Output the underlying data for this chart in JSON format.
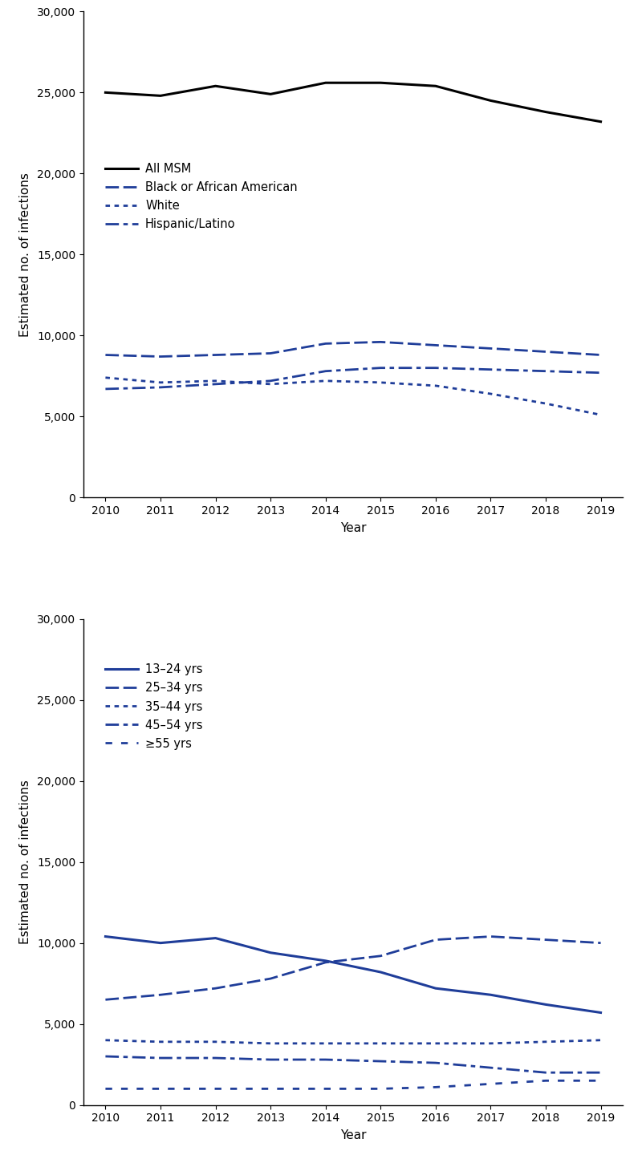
{
  "years": [
    2010,
    2011,
    2012,
    2013,
    2014,
    2015,
    2016,
    2017,
    2018,
    2019
  ],
  "panel1": {
    "all_msm": [
      25000,
      24800,
      25400,
      24900,
      25600,
      25600,
      25400,
      24500,
      23800,
      23200
    ],
    "black": [
      8800,
      8700,
      8800,
      8900,
      9500,
      9600,
      9400,
      9200,
      9000,
      8800
    ],
    "white": [
      7400,
      7100,
      7200,
      7000,
      7200,
      7100,
      6900,
      6400,
      5800,
      5100
    ],
    "hispanic": [
      6700,
      6800,
      7000,
      7200,
      7800,
      8000,
      8000,
      7900,
      7800,
      7700
    ],
    "ylabel": "Estimated no. of infections",
    "xlabel": "Year",
    "ylim": [
      0,
      30000
    ],
    "yticks": [
      0,
      5000,
      10000,
      15000,
      20000,
      25000,
      30000
    ],
    "legend_labels": [
      "All MSM",
      "Black or African American",
      "White",
      "Hispanic/Latino"
    ]
  },
  "panel2": {
    "age_13_24": [
      10400,
      10000,
      10300,
      9400,
      8900,
      8200,
      7200,
      6800,
      6200,
      5700
    ],
    "age_25_34": [
      6500,
      6800,
      7200,
      7800,
      8800,
      9200,
      10200,
      10400,
      10200,
      10000
    ],
    "age_35_44": [
      4000,
      3900,
      3900,
      3800,
      3800,
      3800,
      3800,
      3800,
      3900,
      4000
    ],
    "age_45_54": [
      3000,
      2900,
      2900,
      2800,
      2800,
      2700,
      2600,
      2300,
      2000,
      2000
    ],
    "age_55plus": [
      1000,
      1000,
      1000,
      1000,
      1000,
      1000,
      1100,
      1300,
      1500,
      1500
    ],
    "ylabel": "Estimated no. of infections",
    "xlabel": "Year",
    "ylim": [
      0,
      30000
    ],
    "yticks": [
      0,
      5000,
      10000,
      15000,
      20000,
      25000,
      30000
    ],
    "legend_labels": [
      "13–24 yrs",
      "25–34 yrs",
      "35–44 yrs",
      "45–54 yrs",
      "≥55 yrs"
    ]
  },
  "line_color_black": "#000000",
  "line_color_blue": "#1f3d99",
  "fig_width": 8.0,
  "fig_height": 14.35,
  "dpi": 100
}
